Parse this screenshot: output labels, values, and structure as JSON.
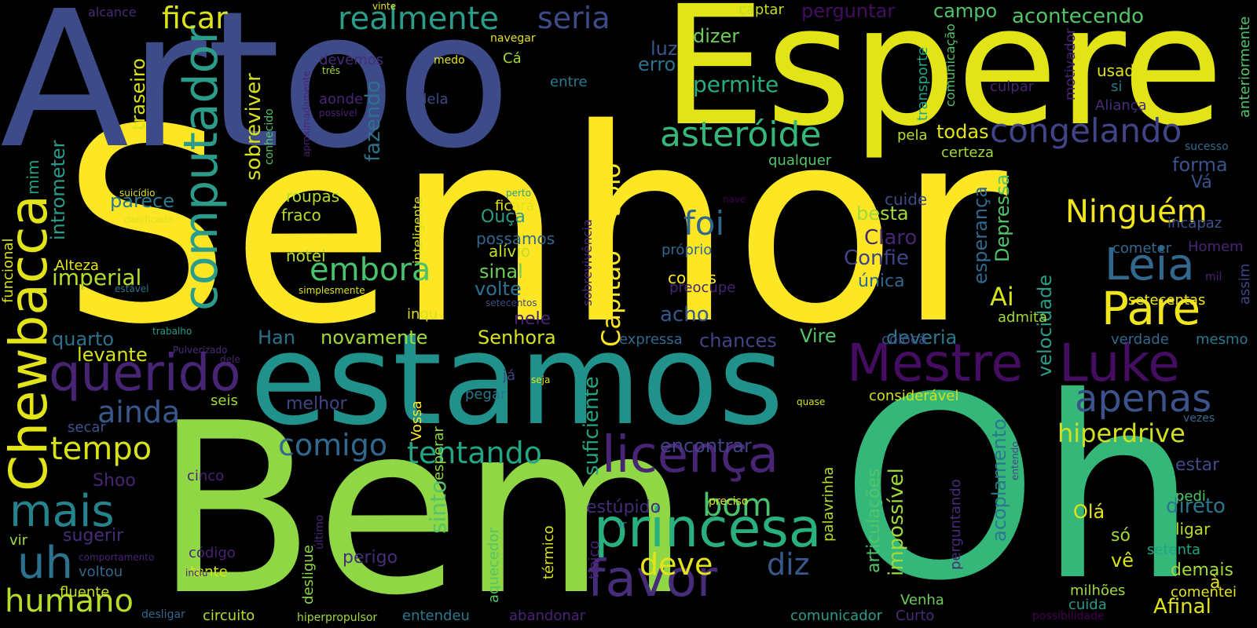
{
  "background": "#000000",
  "palette": {
    "yellow": "#fde725",
    "lime": "#8fd744",
    "green": "#35b779",
    "teal": "#21918c",
    "blue": "#31688e",
    "indigo": "#443983",
    "purple": "#440154"
  },
  "words": [
    "Senhor",
    "Artoo",
    "Espere",
    "estamos",
    "Bem",
    "Oh",
    "Chewbacca",
    "computador",
    "Mestre",
    "Luke",
    "princesa",
    "querido",
    "licença",
    "favor",
    "Ninguém",
    "Leia",
    "Pare",
    "asteróide",
    "congelando",
    "realmente",
    "seria",
    "ficar",
    "apenas",
    "mais",
    "uh",
    "humano",
    "tempo",
    "ainda",
    "comigo",
    "tentando",
    "embora",
    "hiperdrive",
    "bom",
    "deve",
    "diz",
    "foi",
    "Capitão",
    "Solo",
    "sobreviver",
    "fazendo",
    "permite",
    "dizer",
    "erro",
    "luz",
    "acontecendo",
    "perguntar",
    "campo",
    "captar",
    "Ai",
    "besta",
    "Claro",
    "Confie",
    "única",
    "novamente",
    "Han",
    "Senhora",
    "deveria",
    "velocidade",
    "acoplamento",
    "Depressa",
    "esperança",
    "imperial",
    "levante",
    "quarto",
    "Alteza",
    "parece",
    "roupas",
    "fraco",
    "notei",
    "traseiro",
    "intrometer",
    "mim",
    "funcional",
    "sinal",
    "volte",
    "alívio",
    "possamos",
    "Ouça",
    "ficará",
    "nele",
    "acho",
    "chances",
    "Vire",
    "expressa",
    "melhor",
    "encontrar",
    "estúpido",
    "perigo",
    "sugerir",
    "código",
    "tente",
    "voltou",
    "fluente",
    "circuito",
    "entendeu",
    "abandonar",
    "comunicador",
    "Curto",
    "Venha",
    "milhões",
    "comentei",
    "demais",
    "Afinal",
    "setenta",
    "Olá",
    "só",
    "vê",
    "ligar",
    "direto",
    "estar",
    "pedi",
    "à",
    "usado",
    "si",
    "Aliança",
    "motivador",
    "anteriormente",
    "forma",
    "Vá",
    "incapaz",
    "Homem",
    "cometer",
    "assim",
    "setecentas",
    "verdade",
    "mesmo",
    "admita",
    "colocá",
    "considerável",
    "vezes",
    "sucesso",
    "mil",
    "todas",
    "certeza",
    "pela",
    "qualquer",
    "transporte",
    "comunicação",
    "culpar",
    "entre",
    "dela",
    "medo",
    "Cá",
    "navegar",
    "vinte",
    "alcance",
    "devemos",
    "três",
    "aonde",
    "possível",
    "aproximadamente",
    "conhecido",
    "inteligente",
    "suficiente",
    "impossível",
    "articulações",
    "perguntando",
    "palavrinha",
    "preciso",
    "ir",
    "típico",
    "térmico",
    "aquecedor",
    "desligue",
    "último",
    "esperar",
    "Vossa",
    "pegar",
    "seja",
    "já",
    "quase",
    "inqu",
    "simplesmente",
    "estável",
    "Pulverizado",
    "dele",
    "trabalho",
    "seis",
    "secar",
    "Shoo",
    "cinco",
    "vir",
    "comportamento",
    "inciu",
    "desligar",
    "hiperpropulsor",
    "coisas",
    "preocupe",
    "próprio",
    "nave",
    "perto",
    "sobrevivência",
    "setecentos",
    "suicídio",
    "danificado",
    "entendo",
    "possibilidade",
    "cuida",
    "cuide",
    "sinto"
  ]
}
